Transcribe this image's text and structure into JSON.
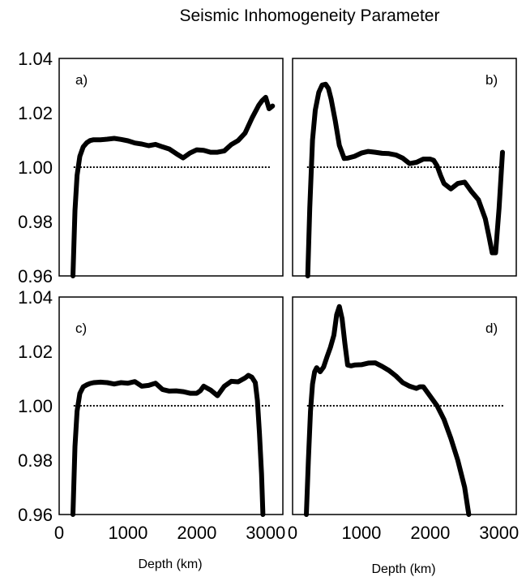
{
  "title": "Seismic Inhomogeneity Parameter",
  "xlabel": "Depth (km)",
  "chart_data": [
    {
      "type": "line",
      "panel_label": "a)",
      "xlim": [
        0,
        3250
      ],
      "ylim": [
        0.96,
        1.04
      ],
      "yticks": [
        "0.96",
        "0.98",
        "1.00",
        "1.02",
        "1.04"
      ],
      "xticks": [
        "0",
        "1000",
        "2000",
        "3000"
      ],
      "reference_line": 1.0,
      "series": [
        {
          "x": [
            200,
            230,
            260,
            300,
            350,
            400,
            450,
            500,
            600,
            700,
            800,
            900,
            1000,
            1100,
            1200,
            1300,
            1400,
            1500,
            1600,
            1700,
            1800,
            1900,
            2000,
            2100,
            2200,
            2300,
            2400,
            2500,
            2600,
            2700,
            2800,
            2900,
            2950,
            3000,
            3050,
            3100
          ],
          "y": [
            0.96,
            0.984,
            0.997,
            1.004,
            1.0075,
            1.009,
            1.0098,
            1.0101,
            1.0101,
            1.0103,
            1.0106,
            1.0102,
            1.0097,
            1.0089,
            1.0085,
            1.0079,
            1.0084,
            1.0075,
            1.0067,
            1.005,
            1.0034,
            1.0052,
            1.0064,
            1.0062,
            1.0055,
            1.0055,
            1.006,
            1.0083,
            1.0098,
            1.0125,
            1.018,
            1.0228,
            1.0245,
            1.0257,
            1.0215,
            1.0225
          ]
        }
      ]
    },
    {
      "type": "line",
      "panel_label": "b)",
      "xlim": [
        0,
        3250
      ],
      "ylim": [
        0.96,
        1.04
      ],
      "xticks": [
        "0",
        "1000",
        "2000",
        "3000"
      ],
      "reference_line": 1.0,
      "series": [
        {
          "x": [
            220,
            250,
            290,
            330,
            380,
            430,
            480,
            520,
            560,
            620,
            680,
            750,
            800,
            900,
            1000,
            1100,
            1200,
            1300,
            1400,
            1500,
            1600,
            1700,
            1800,
            1900,
            2000,
            2050,
            2100,
            2150,
            2200,
            2300,
            2400,
            2500,
            2600,
            2700,
            2800,
            2850,
            2900,
            2950,
            3000,
            3050
          ],
          "y": [
            0.96,
            0.985,
            1.01,
            1.021,
            1.0275,
            1.0302,
            1.0305,
            1.029,
            1.025,
            1.017,
            1.008,
            1.0032,
            1.0033,
            1.004,
            1.0052,
            1.0058,
            1.0055,
            1.0051,
            1.005,
            1.0045,
            1.0033,
            1.0013,
            1.0018,
            1.003,
            1.003,
            1.0025,
            1.0005,
            0.997,
            0.994,
            0.992,
            0.994,
            0.9945,
            0.991,
            0.988,
            0.981,
            0.975,
            0.9685,
            0.9685,
            0.985,
            1.0055
          ]
        }
      ]
    },
    {
      "type": "line",
      "panel_label": "c)",
      "xlim": [
        0,
        3250
      ],
      "ylim": [
        0.96,
        1.04
      ],
      "yticks": [
        "0.96",
        "0.98",
        "1.00",
        "1.02",
        "1.04"
      ],
      "xticks": [
        "0",
        "1000",
        "2000",
        "3000"
      ],
      "reference_line": 1.0,
      "series": [
        {
          "x": [
            200,
            230,
            260,
            300,
            350,
            400,
            450,
            500,
            600,
            700,
            800,
            900,
            1000,
            1100,
            1200,
            1300,
            1400,
            1500,
            1600,
            1700,
            1800,
            1900,
            2000,
            2050,
            2100,
            2200,
            2300,
            2400,
            2500,
            2600,
            2700,
            2750,
            2800,
            2850,
            2880,
            2910,
            2940,
            2960
          ],
          "y": [
            0.96,
            0.985,
            0.998,
            1.0045,
            1.007,
            1.0077,
            1.0082,
            1.0085,
            1.0087,
            1.0085,
            1.008,
            1.0085,
            1.0083,
            1.0089,
            1.0072,
            1.0075,
            1.0083,
            1.006,
            1.0054,
            1.0055,
            1.0052,
            1.0046,
            1.0046,
            1.0055,
            1.0072,
            1.0058,
            1.0037,
            1.0072,
            1.009,
            1.0088,
            1.0102,
            1.0112,
            1.0105,
            1.0085,
            1.002,
            0.99,
            0.975,
            0.96
          ]
        }
      ]
    },
    {
      "type": "line",
      "panel_label": "d)",
      "xlim": [
        0,
        3250
      ],
      "ylim": [
        0.96,
        1.04
      ],
      "xticks": [
        "0",
        "1000",
        "2000",
        "3000"
      ],
      "reference_line": 1.0,
      "series": [
        {
          "x": [
            200,
            230,
            260,
            290,
            320,
            350,
            400,
            450,
            500,
            550,
            600,
            640,
            680,
            720,
            760,
            800,
            850,
            900,
            1000,
            1100,
            1200,
            1300,
            1400,
            1500,
            1600,
            1700,
            1800,
            1850,
            1900,
            2000,
            2100,
            2200,
            2300,
            2400,
            2500,
            2560
          ],
          "y": [
            0.96,
            0.98,
            0.998,
            1.008,
            1.0125,
            1.014,
            1.0125,
            1.0142,
            1.018,
            1.0215,
            1.026,
            1.0335,
            1.0365,
            1.032,
            1.023,
            1.015,
            1.0147,
            1.015,
            1.0151,
            1.0157,
            1.0158,
            1.0145,
            1.013,
            1.011,
            1.0085,
            1.0072,
            1.0064,
            1.007,
            1.007,
            1.0035,
            1.0,
            0.995,
            0.988,
            0.98,
            0.97,
            0.96
          ]
        }
      ]
    }
  ]
}
